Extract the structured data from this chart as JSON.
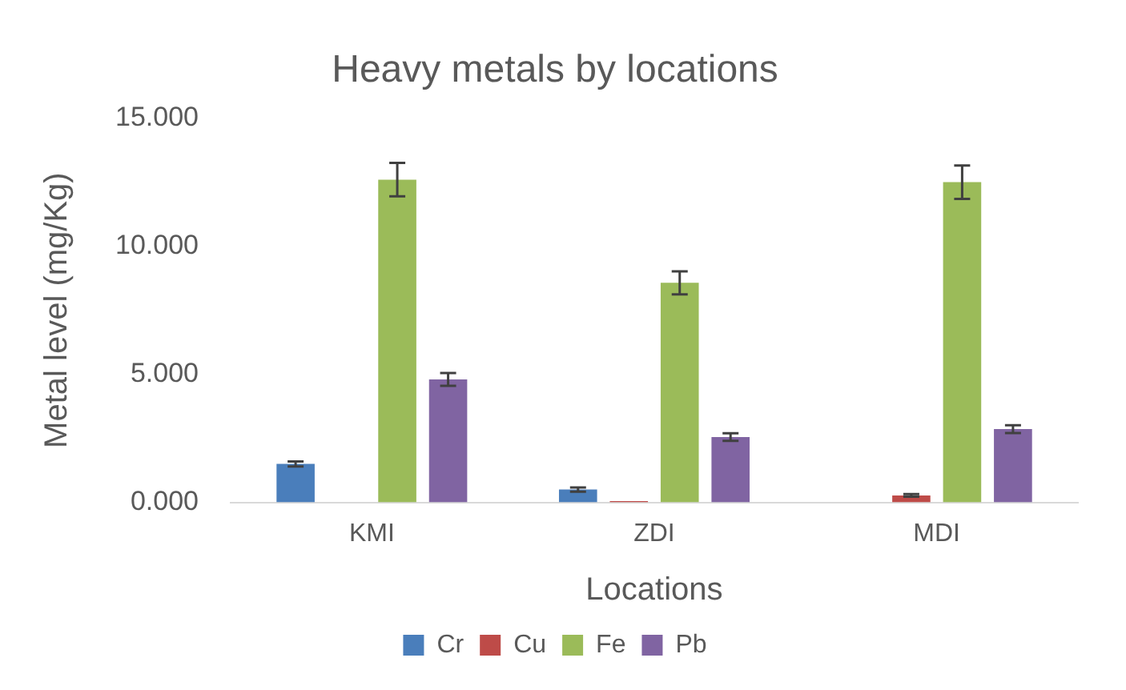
{
  "chart_data": {
    "type": "bar",
    "title": "Heavy metals by locations",
    "xlabel": "Locations",
    "ylabel": "Metal level (mg/Kg)",
    "categories": [
      "KMI",
      "ZDI",
      "MDI"
    ],
    "series": [
      {
        "name": "Cr",
        "color": "#4a7ebb",
        "values": [
          1.5,
          0.5,
          null
        ],
        "errors": [
          0.1,
          0.08,
          null
        ]
      },
      {
        "name": "Cu",
        "color": "#be4b48",
        "values": [
          null,
          0.05,
          0.27
        ],
        "errors": [
          null,
          null,
          0.05
        ]
      },
      {
        "name": "Fe",
        "color": "#9bbb59",
        "values": [
          12.6,
          8.57,
          12.5
        ],
        "errors": [
          0.65,
          0.45,
          0.65
        ]
      },
      {
        "name": "Pb",
        "color": "#8064a2",
        "values": [
          4.8,
          2.55,
          2.86
        ],
        "errors": [
          0.25,
          0.15,
          0.15
        ]
      }
    ],
    "ylim": [
      0,
      15
    ],
    "yticks": [
      {
        "value": 0,
        "label": "0.000"
      },
      {
        "value": 5,
        "label": "5.000"
      },
      {
        "value": 10,
        "label": "10.000"
      },
      {
        "value": 15,
        "label": "15.000"
      }
    ],
    "grid": false,
    "legend": "bottom"
  }
}
